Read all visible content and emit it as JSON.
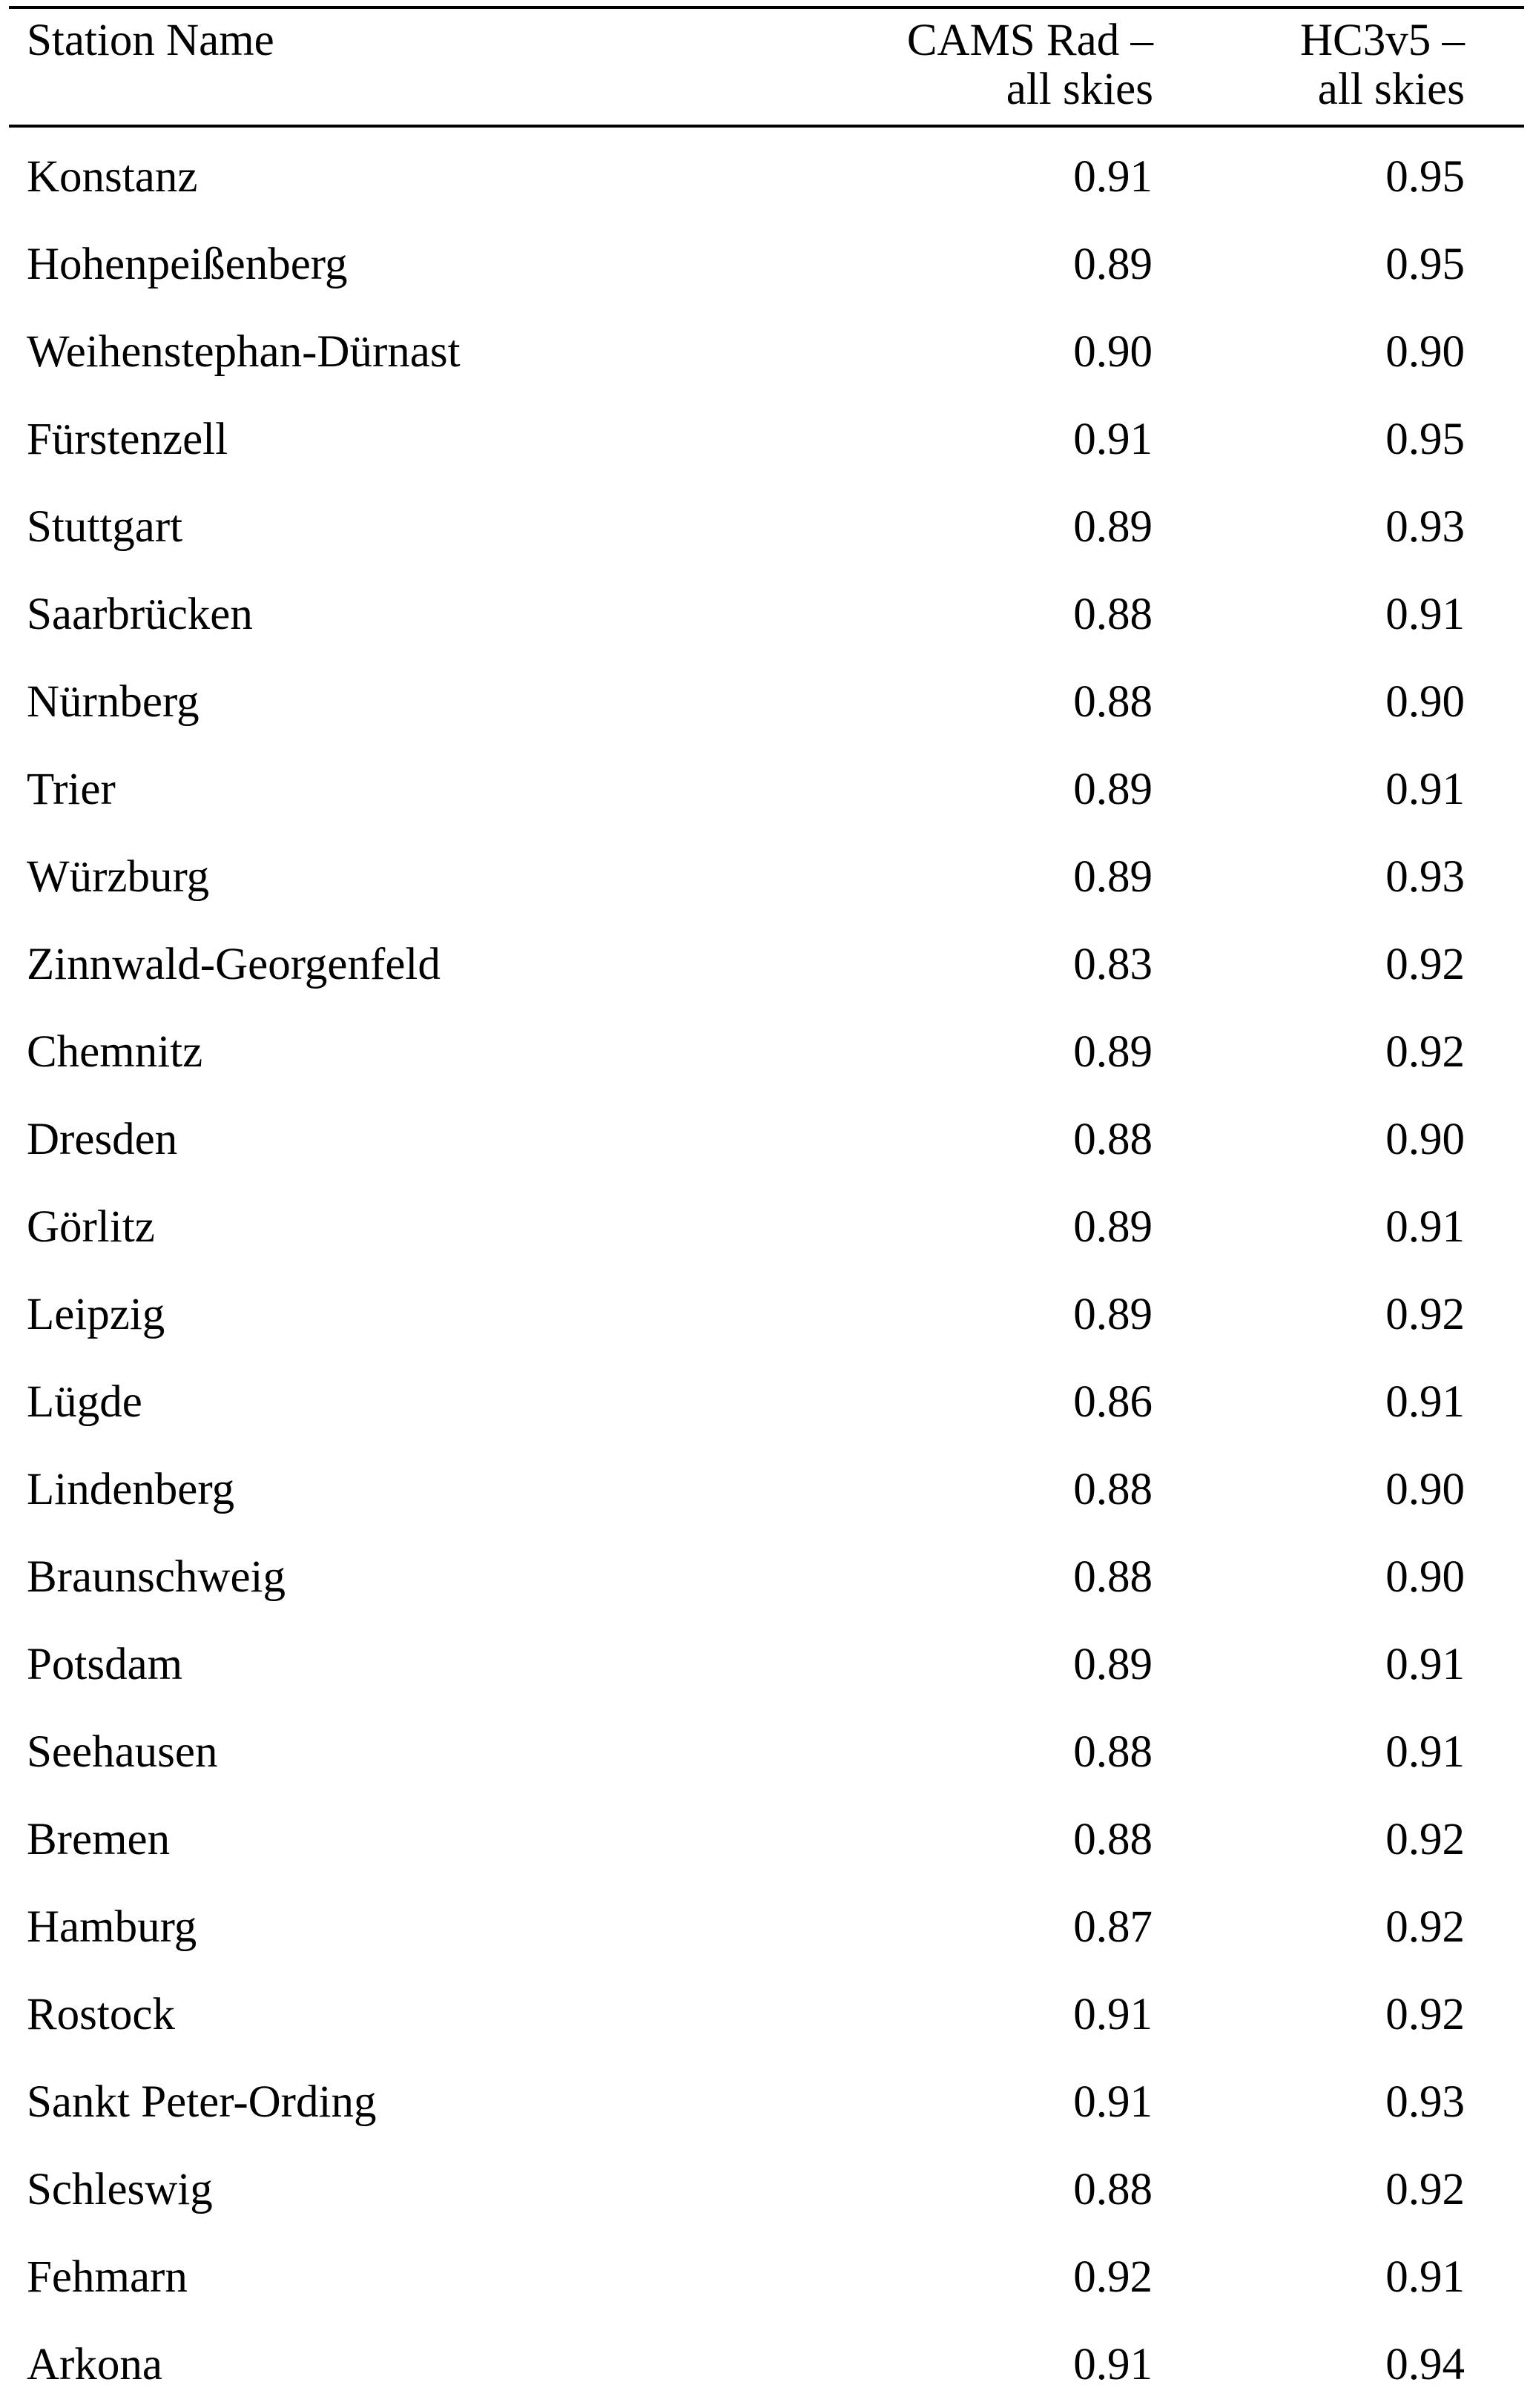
{
  "table": {
    "headers": {
      "station": "Station Name",
      "cams_line1": "CAMS Rad –",
      "cams_line2": "all skies",
      "hc3_line1": "HC3v5 –",
      "hc3_line2": "all skies"
    },
    "rows": [
      {
        "station": "Konstanz",
        "cams": "0.91",
        "hc3": "0.95"
      },
      {
        "station": "Hohenpeißenberg",
        "cams": "0.89",
        "hc3": "0.95"
      },
      {
        "station": "Weihenstephan-Dürnast",
        "cams": "0.90",
        "hc3": "0.90"
      },
      {
        "station": "Fürstenzell",
        "cams": "0.91",
        "hc3": "0.95"
      },
      {
        "station": "Stuttgart",
        "cams": "0.89",
        "hc3": "0.93"
      },
      {
        "station": "Saarbrücken",
        "cams": "0.88",
        "hc3": "0.91"
      },
      {
        "station": "Nürnberg",
        "cams": "0.88",
        "hc3": "0.90"
      },
      {
        "station": "Trier",
        "cams": "0.89",
        "hc3": "0.91"
      },
      {
        "station": "Würzburg",
        "cams": "0.89",
        "hc3": "0.93"
      },
      {
        "station": "Zinnwald-Georgenfeld",
        "cams": "0.83",
        "hc3": "0.92"
      },
      {
        "station": "Chemnitz",
        "cams": "0.89",
        "hc3": "0.92"
      },
      {
        "station": "Dresden",
        "cams": "0.88",
        "hc3": "0.90"
      },
      {
        "station": "Görlitz",
        "cams": "0.89",
        "hc3": "0.91"
      },
      {
        "station": "Leipzig",
        "cams": "0.89",
        "hc3": "0.92"
      },
      {
        "station": "Lügde",
        "cams": "0.86",
        "hc3": "0.91"
      },
      {
        "station": "Lindenberg",
        "cams": "0.88",
        "hc3": "0.90"
      },
      {
        "station": "Braunschweig",
        "cams": "0.88",
        "hc3": "0.90"
      },
      {
        "station": "Potsdam",
        "cams": "0.89",
        "hc3": "0.91"
      },
      {
        "station": "Seehausen",
        "cams": "0.88",
        "hc3": "0.91"
      },
      {
        "station": "Bremen",
        "cams": "0.88",
        "hc3": "0.92"
      },
      {
        "station": "Hamburg",
        "cams": "0.87",
        "hc3": "0.92"
      },
      {
        "station": "Rostock",
        "cams": "0.91",
        "hc3": "0.92"
      },
      {
        "station": "Sankt Peter-Ording",
        "cams": "0.91",
        "hc3": "0.93"
      },
      {
        "station": "Schleswig",
        "cams": "0.88",
        "hc3": "0.92"
      },
      {
        "station": "Fehmarn",
        "cams": "0.92",
        "hc3": "0.91"
      },
      {
        "station": "Arkona",
        "cams": "0.91",
        "hc3": "0.94"
      }
    ]
  }
}
